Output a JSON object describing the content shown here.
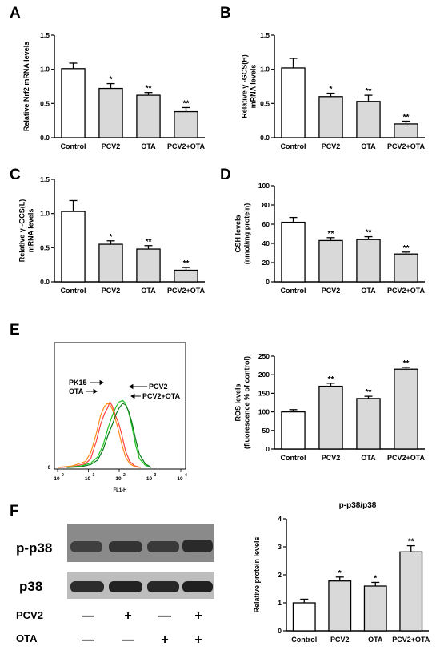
{
  "panels": {
    "A": "A",
    "B": "B",
    "C": "C",
    "D": "D",
    "E": "E",
    "F": "F"
  },
  "colors": {
    "control_bar": "#ffffff",
    "treatment_bar": "#d9d9d9",
    "axis": "#000000",
    "hist_pk15": "#ff4040",
    "hist_ota": "#ff8c1a",
    "hist_pcv2": "#22c422",
    "hist_pcv2_ota": "#0a7a1a"
  },
  "chart_data": [
    {
      "panel": "A",
      "type": "bar",
      "categories": [
        "Control",
        "PCV2",
        "OTA",
        "PCV2+OTA"
      ],
      "values": [
        1.01,
        0.72,
        0.62,
        0.38
      ],
      "errors": [
        0.08,
        0.07,
        0.04,
        0.06
      ],
      "significance": [
        "",
        "*",
        "**",
        "**"
      ],
      "ylabel": "Relative Nrf2 mRNA levels",
      "ylim": [
        0,
        1.5
      ],
      "yticks": [
        "0.0",
        "0.5",
        "1.0",
        "1.5"
      ]
    },
    {
      "panel": "B",
      "type": "bar",
      "categories": [
        "Control",
        "PCV2",
        "OTA",
        "PCV2+OTA"
      ],
      "values": [
        1.02,
        0.6,
        0.53,
        0.2
      ],
      "errors": [
        0.14,
        0.05,
        0.09,
        0.04
      ],
      "significance": [
        "",
        "*",
        "**",
        "**"
      ],
      "ylabel": [
        "Relative γ -GCS(H)",
        "mRNA levels"
      ],
      "ylim": [
        0,
        1.5
      ],
      "yticks": [
        "0.0",
        "0.5",
        "1.0",
        "1.5"
      ]
    },
    {
      "panel": "C",
      "type": "bar",
      "categories": [
        "Control",
        "PCV2",
        "OTA",
        "PCV2+OTA"
      ],
      "values": [
        1.03,
        0.55,
        0.48,
        0.17
      ],
      "errors": [
        0.16,
        0.05,
        0.05,
        0.04
      ],
      "significance": [
        "",
        "*",
        "**",
        "**"
      ],
      "ylabel": [
        "Relative γ -GCS(L)",
        "mRNA levels"
      ],
      "ylim": [
        0,
        1.5
      ],
      "yticks": [
        "0.0",
        "0.5",
        "1.0",
        "1.5"
      ]
    },
    {
      "panel": "D",
      "type": "bar",
      "categories": [
        "Control",
        "PCV2",
        "OTA",
        "PCV2+OTA"
      ],
      "values": [
        62,
        43,
        44,
        29
      ],
      "errors": [
        5,
        3,
        3,
        2
      ],
      "significance": [
        "",
        "**",
        "**",
        "**"
      ],
      "ylabel": [
        "GSH levels",
        "(nmol/mg protein)"
      ],
      "ylim": [
        0,
        100
      ],
      "yticks": [
        "0",
        "20",
        "40",
        "60",
        "80",
        "100"
      ]
    },
    {
      "panel": "E-histogram",
      "type": "line",
      "xlabel": "FL1-H",
      "x_scale": "log",
      "xticks": [
        "10",
        "10",
        "10",
        "10",
        "10"
      ],
      "xtick_exponents": [
        "0",
        "1",
        "2",
        "3",
        "4"
      ],
      "yticks": [
        "0"
      ],
      "series": [
        {
          "name": "PK15",
          "x": [
            1,
            3,
            8,
            12,
            18,
            25,
            33,
            42,
            50,
            60,
            75,
            95,
            120,
            160,
            220,
            320,
            500
          ],
          "values": [
            0,
            1,
            5,
            12,
            35,
            58,
            72,
            80,
            88,
            82,
            70,
            60,
            45,
            22,
            8,
            2,
            0
          ]
        },
        {
          "name": "OTA",
          "x": [
            1,
            3,
            8,
            12,
            18,
            25,
            33,
            42,
            50,
            60,
            75,
            95,
            120,
            160,
            220,
            320,
            500
          ],
          "values": [
            0,
            2,
            8,
            20,
            45,
            70,
            82,
            86,
            84,
            78,
            65,
            50,
            32,
            14,
            5,
            1,
            0
          ]
        },
        {
          "name": "PCV2",
          "x": [
            2,
            6,
            12,
            20,
            30,
            45,
            60,
            80,
            100,
            130,
            160,
            200,
            260,
            340,
            450,
            700,
            1100
          ],
          "values": [
            0,
            2,
            6,
            14,
            30,
            55,
            70,
            82,
            88,
            90,
            86,
            75,
            55,
            30,
            12,
            3,
            0
          ]
        },
        {
          "name": "PCV2+OTA",
          "x": [
            2,
            6,
            12,
            20,
            30,
            45,
            60,
            80,
            100,
            130,
            160,
            200,
            260,
            340,
            450,
            700,
            1100
          ],
          "values": [
            0,
            1,
            4,
            10,
            24,
            45,
            58,
            72,
            80,
            86,
            84,
            76,
            60,
            38,
            18,
            5,
            0
          ]
        }
      ],
      "annotations": [
        "PK15",
        "OTA",
        "PCV2",
        "PCV2+OTA"
      ]
    },
    {
      "panel": "E",
      "type": "bar",
      "categories": [
        "Control",
        "PCV2",
        "OTA",
        "PCV2+OTA"
      ],
      "values": [
        100,
        169,
        136,
        215
      ],
      "errors": [
        6,
        8,
        6,
        5
      ],
      "significance": [
        "",
        "**",
        "**",
        "**"
      ],
      "ylabel": [
        "ROS levels",
        "(fluorescence % of control)"
      ],
      "ylim": [
        0,
        250
      ],
      "yticks": [
        "0",
        "50",
        "100",
        "150",
        "200",
        "250"
      ]
    },
    {
      "panel": "F",
      "type": "bar",
      "title": "p-p38/p38",
      "categories": [
        "Control",
        "PCV2",
        "OTA",
        "PCV2+OTA"
      ],
      "values": [
        1.0,
        1.78,
        1.6,
        2.82
      ],
      "errors": [
        0.13,
        0.14,
        0.13,
        0.22
      ],
      "significance": [
        "",
        "*",
        "*",
        "**"
      ],
      "ylabel": "Relative protein levels",
      "ylim": [
        0,
        4
      ],
      "yticks": [
        "0",
        "1",
        "2",
        "3",
        "4"
      ]
    }
  ],
  "blot": {
    "band_labels": [
      "p-p38",
      "p38"
    ],
    "row_labels": [
      "PCV2",
      "OTA"
    ],
    "pcv2_signs": [
      "—",
      "+",
      "—",
      "+"
    ],
    "ota_signs": [
      "—",
      "—",
      "+",
      "+"
    ]
  }
}
